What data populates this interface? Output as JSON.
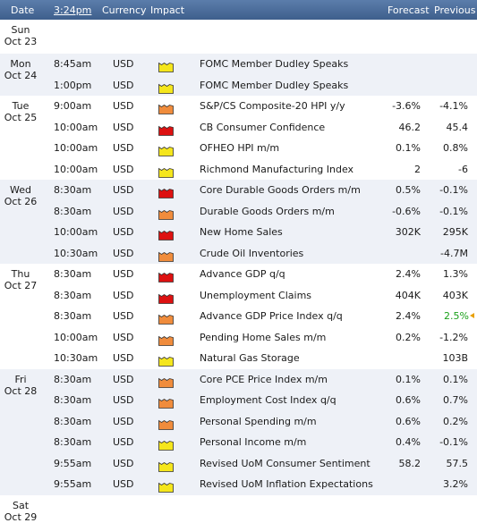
{
  "header": {
    "date": "Date",
    "time": "3:24pm",
    "currency": "Currency",
    "impact": "Impact",
    "forecast": "Forecast",
    "previous": "Previous"
  },
  "colors": {
    "header_bg": "#4a6b98",
    "alt_row": "#eef1f7",
    "high": "#dd1111",
    "medium": "#f08c3c",
    "low": "#f5e61c",
    "up": "#1aa01a"
  },
  "days": [
    {
      "dow": "Sun",
      "date": "Oct 23",
      "events": []
    },
    {
      "dow": "Mon",
      "date": "Oct 24",
      "events": [
        {
          "time": "8:45am",
          "currency": "USD",
          "impact": "low",
          "title": "FOMC Member Dudley Speaks",
          "forecast": "",
          "previous": ""
        },
        {
          "time": "1:00pm",
          "currency": "USD",
          "impact": "low",
          "title": "FOMC Member Dudley Speaks",
          "forecast": "",
          "previous": ""
        }
      ]
    },
    {
      "dow": "Tue",
      "date": "Oct 25",
      "events": [
        {
          "time": "9:00am",
          "currency": "USD",
          "impact": "medium",
          "title": "S&P/CS Composite-20 HPI y/y",
          "forecast": "-3.6%",
          "previous": "-4.1%"
        },
        {
          "time": "10:00am",
          "currency": "USD",
          "impact": "high",
          "title": "CB Consumer Confidence",
          "forecast": "46.2",
          "previous": "45.4"
        },
        {
          "time": "10:00am",
          "currency": "USD",
          "impact": "low",
          "title": "OFHEO HPI m/m",
          "forecast": "0.1%",
          "previous": "0.8%"
        },
        {
          "time": "10:00am",
          "currency": "USD",
          "impact": "low",
          "title": "Richmond Manufacturing Index",
          "forecast": "2",
          "previous": "-6"
        }
      ]
    },
    {
      "dow": "Wed",
      "date": "Oct 26",
      "events": [
        {
          "time": "8:30am",
          "currency": "USD",
          "impact": "high",
          "title": "Core Durable Goods Orders m/m",
          "forecast": "0.5%",
          "previous": "-0.1%"
        },
        {
          "time": "8:30am",
          "currency": "USD",
          "impact": "medium",
          "title": "Durable Goods Orders m/m",
          "forecast": "-0.6%",
          "previous": "-0.1%"
        },
        {
          "time": "10:00am",
          "currency": "USD",
          "impact": "high",
          "title": "New Home Sales",
          "forecast": "302K",
          "previous": "295K"
        },
        {
          "time": "10:30am",
          "currency": "USD",
          "impact": "medium",
          "title": "Crude Oil Inventories",
          "forecast": "",
          "previous": "-4.7M"
        }
      ]
    },
    {
      "dow": "Thu",
      "date": "Oct 27",
      "events": [
        {
          "time": "8:30am",
          "currency": "USD",
          "impact": "high",
          "title": "Advance GDP q/q",
          "forecast": "2.4%",
          "previous": "1.3%"
        },
        {
          "time": "8:30am",
          "currency": "USD",
          "impact": "high",
          "title": "Unemployment Claims",
          "forecast": "404K",
          "previous": "403K"
        },
        {
          "time": "8:30am",
          "currency": "USD",
          "impact": "medium",
          "title": "Advance GDP Price Index q/q",
          "forecast": "2.4%",
          "previous": "2.5%",
          "revised_up": true
        },
        {
          "time": "10:00am",
          "currency": "USD",
          "impact": "medium",
          "title": "Pending Home Sales m/m",
          "forecast": "0.2%",
          "previous": "-1.2%"
        },
        {
          "time": "10:30am",
          "currency": "USD",
          "impact": "low",
          "title": "Natural Gas Storage",
          "forecast": "",
          "previous": "103B"
        }
      ]
    },
    {
      "dow": "Fri",
      "date": "Oct 28",
      "events": [
        {
          "time": "8:30am",
          "currency": "USD",
          "impact": "medium",
          "title": "Core PCE Price Index m/m",
          "forecast": "0.1%",
          "previous": "0.1%"
        },
        {
          "time": "8:30am",
          "currency": "USD",
          "impact": "medium",
          "title": "Employment Cost Index q/q",
          "forecast": "0.6%",
          "previous": "0.7%"
        },
        {
          "time": "8:30am",
          "currency": "USD",
          "impact": "medium",
          "title": "Personal Spending m/m",
          "forecast": "0.6%",
          "previous": "0.2%"
        },
        {
          "time": "8:30am",
          "currency": "USD",
          "impact": "low",
          "title": "Personal Income m/m",
          "forecast": "0.4%",
          "previous": "-0.1%"
        },
        {
          "time": "9:55am",
          "currency": "USD",
          "impact": "low",
          "title": "Revised UoM Consumer Sentiment",
          "forecast": "58.2",
          "previous": "57.5"
        },
        {
          "time": "9:55am",
          "currency": "USD",
          "impact": "low",
          "title": "Revised UoM Inflation Expectations",
          "forecast": "",
          "previous": "3.2%"
        }
      ]
    },
    {
      "dow": "Sat",
      "date": "Oct 29",
      "events": []
    }
  ]
}
